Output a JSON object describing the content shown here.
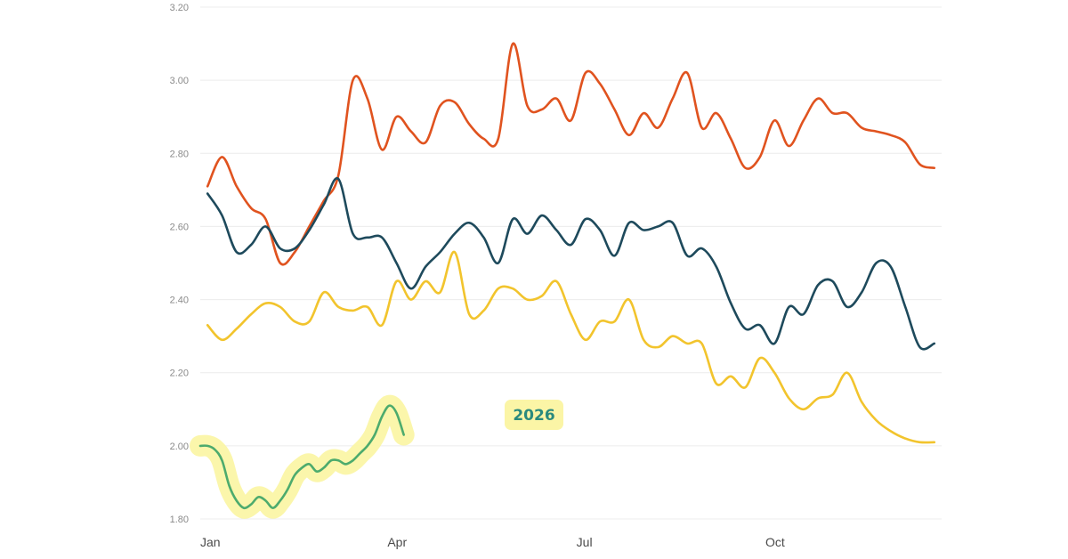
{
  "chart_data": {
    "type": "line",
    "title": "",
    "xlabel": "",
    "ylabel": "",
    "ylim": [
      1.8,
      3.2
    ],
    "y_ticks": [
      "1.80",
      "2.00",
      "2.20",
      "2.40",
      "2.60",
      "2.80",
      "3.00",
      "3.20"
    ],
    "x_ticks": [
      {
        "label": "Jan",
        "x": 0
      },
      {
        "label": "Apr",
        "x": 13
      },
      {
        "label": "Jul",
        "x": 26
      },
      {
        "label": "Oct",
        "x": 39
      }
    ],
    "x_unit": "week of year",
    "grid": true,
    "legend": "none",
    "series": [
      {
        "color": "#e0531f",
        "x": [
          0.5,
          1.5,
          2.5,
          3.5,
          4.5,
          5.5,
          6.5,
          7.5,
          8.5,
          9.5,
          10.5,
          11.5,
          12.5,
          13.5,
          14.5,
          15.5,
          16.5,
          17.5,
          18.5,
          19.5,
          20.5,
          21.5,
          22.5,
          23.5,
          24.5,
          25.5,
          26.5,
          27.5,
          28.5,
          29.5,
          30.5,
          31.5,
          32.5,
          33.5,
          34.5,
          35.5,
          36.5,
          37.5,
          38.5,
          39.5,
          40.5,
          41.5,
          42.5,
          43.5,
          44.5,
          45.5,
          46.5,
          47.5,
          48.5,
          49.5,
          50.5
        ],
        "values": [
          2.71,
          2.79,
          2.71,
          2.65,
          2.62,
          2.5,
          2.53,
          2.6,
          2.67,
          2.74,
          3.0,
          2.95,
          2.81,
          2.9,
          2.86,
          2.83,
          2.93,
          2.94,
          2.88,
          2.84,
          2.84,
          3.1,
          2.93,
          2.92,
          2.95,
          2.89,
          3.02,
          2.99,
          2.92,
          2.85,
          2.91,
          2.87,
          2.95,
          3.02,
          2.87,
          2.91,
          2.84,
          2.76,
          2.79,
          2.89,
          2.82,
          2.89,
          2.95,
          2.91,
          2.91,
          2.87,
          2.86,
          2.85,
          2.83,
          2.77,
          2.76
        ]
      },
      {
        "color": "#1e4a5c",
        "x": [
          0.5,
          1.5,
          2.5,
          3.5,
          4.5,
          5.5,
          6.5,
          7.5,
          8.5,
          9.5,
          10.5,
          11.5,
          12.5,
          13.5,
          14.5,
          15.5,
          16.5,
          17.5,
          18.5,
          19.5,
          20.5,
          21.5,
          22.5,
          23.5,
          24.5,
          25.5,
          26.5,
          27.5,
          28.5,
          29.5,
          30.5,
          31.5,
          32.5,
          33.5,
          34.5,
          35.5,
          36.5,
          37.5,
          38.5,
          39.5,
          40.5,
          41.5,
          42.5,
          43.5,
          44.5,
          45.5,
          46.5,
          47.5,
          48.5,
          49.5,
          50.5
        ],
        "values": [
          2.69,
          2.63,
          2.53,
          2.55,
          2.6,
          2.54,
          2.54,
          2.59,
          2.66,
          2.73,
          2.58,
          2.57,
          2.57,
          2.5,
          2.43,
          2.49,
          2.53,
          2.58,
          2.61,
          2.57,
          2.5,
          2.62,
          2.58,
          2.63,
          2.59,
          2.55,
          2.62,
          2.59,
          2.52,
          2.61,
          2.59,
          2.6,
          2.61,
          2.52,
          2.54,
          2.49,
          2.39,
          2.32,
          2.33,
          2.28,
          2.38,
          2.36,
          2.44,
          2.45,
          2.38,
          2.42,
          2.5,
          2.49,
          2.38,
          2.27,
          2.28
        ]
      },
      {
        "color": "#f2c42d",
        "x": [
          0.5,
          1.5,
          2.5,
          3.5,
          4.5,
          5.5,
          6.5,
          7.5,
          8.5,
          9.5,
          10.5,
          11.5,
          12.5,
          13.5,
          14.5,
          15.5,
          16.5,
          17.5,
          18.5,
          19.5,
          20.5,
          21.5,
          22.5,
          23.5,
          24.5,
          25.5,
          26.5,
          27.5,
          28.5,
          29.5,
          30.5,
          31.5,
          32.5,
          33.5,
          34.5,
          35.5,
          36.5,
          37.5,
          38.5,
          39.5,
          40.5,
          41.5,
          42.5,
          43.5,
          44.5,
          45.5,
          46.5,
          47.5,
          48.5,
          49.5,
          50.5
        ],
        "values": [
          2.33,
          2.29,
          2.32,
          2.36,
          2.39,
          2.38,
          2.34,
          2.34,
          2.42,
          2.38,
          2.37,
          2.38,
          2.33,
          2.45,
          2.4,
          2.45,
          2.42,
          2.53,
          2.36,
          2.37,
          2.43,
          2.43,
          2.4,
          2.41,
          2.45,
          2.36,
          2.29,
          2.34,
          2.34,
          2.4,
          2.29,
          2.27,
          2.3,
          2.28,
          2.28,
          2.17,
          2.19,
          2.16,
          2.24,
          2.2,
          2.13,
          2.1,
          2.13,
          2.14,
          2.2,
          2.12,
          2.07,
          2.04,
          2.02,
          2.01,
          2.01
        ]
      },
      {
        "name": "2026",
        "color": "#4dab6d",
        "highlight": "#fbf5a6",
        "x": [
          0,
          0.5,
          1,
          1.5,
          2,
          2.5,
          3,
          3.5,
          4,
          4.5,
          5,
          5.5,
          6,
          6.5,
          7,
          7.5,
          8,
          8.5,
          9,
          9.5,
          10,
          10.5,
          11,
          11.5,
          12,
          12.5,
          13,
          13.5,
          14
        ],
        "values": [
          2.0,
          2.0,
          1.99,
          1.96,
          1.89,
          1.85,
          1.83,
          1.84,
          1.86,
          1.85,
          1.83,
          1.85,
          1.88,
          1.92,
          1.94,
          1.95,
          1.93,
          1.94,
          1.96,
          1.96,
          1.95,
          1.96,
          1.98,
          2.0,
          2.03,
          2.08,
          2.11,
          2.09,
          2.03
        ]
      }
    ],
    "annotations": [
      {
        "text": "2026",
        "series": "2026",
        "color": "#2a8a7e",
        "background": "#fbf5a6"
      }
    ]
  }
}
